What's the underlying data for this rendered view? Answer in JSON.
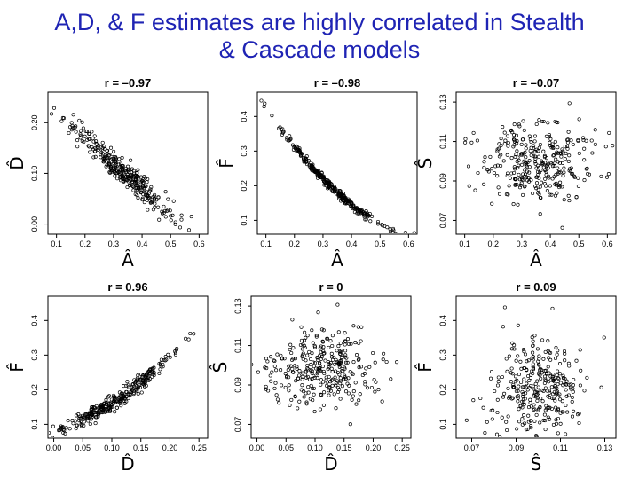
{
  "slide": {
    "title_line1": "A,D, & F estimates are highly correlated in Stealth",
    "title_line2": "& Cascade models"
  },
  "colors": {
    "title": "#1f24b4",
    "points": "#000000",
    "frame": "#000000"
  },
  "chart_data": [
    {
      "type": "scatter",
      "title": "r = –0.97",
      "xlabel": "Â",
      "ylabel": "D̂",
      "xticks": [
        "0.1",
        "0.2",
        "0.3",
        "0.4",
        "0.5",
        "0.6"
      ],
      "yticks": [
        "0.00",
        "0.10",
        "0.20"
      ],
      "xlim": [
        0.07,
        0.63
      ],
      "ylim": [
        -0.02,
        0.26
      ],
      "series": [
        {
          "relation": "linear",
          "slope": -0.5,
          "intercept": 0.27,
          "noise": 0.013,
          "x_mean": 0.33,
          "x_sd": 0.09,
          "n": 320
        }
      ]
    },
    {
      "type": "scatter",
      "title": "r = –0.98",
      "xlabel": "Â",
      "ylabel": "F̂",
      "xticks": [
        "0.1",
        "0.2",
        "0.3",
        "0.4",
        "0.5",
        "0.6"
      ],
      "yticks": [
        "0.1",
        "0.2",
        "0.3",
        "0.4"
      ],
      "xlim": [
        0.07,
        0.63
      ],
      "ylim": [
        0.06,
        0.47
      ],
      "series": [
        {
          "relation": "curve_af",
          "noise": 0.006,
          "x_mean": 0.33,
          "x_sd": 0.09,
          "n": 320
        }
      ]
    },
    {
      "type": "scatter",
      "title": "r = –0.07",
      "xlabel": "Â",
      "ylabel": "Ŝ",
      "xticks": [
        "0.1",
        "0.2",
        "0.3",
        "0.4",
        "0.5",
        "0.6"
      ],
      "yticks": [
        "0.07",
        "0.09",
        "0.11",
        "0.13"
      ],
      "xlim": [
        0.07,
        0.63
      ],
      "ylim": [
        0.063,
        0.135
      ],
      "series": [
        {
          "relation": "none",
          "y_mean": 0.1,
          "y_sd": 0.01,
          "x_mean": 0.35,
          "x_sd": 0.1,
          "n": 320
        }
      ]
    },
    {
      "type": "scatter",
      "title": "r = 0.96",
      "xlabel": "D̂",
      "ylabel": "F̂",
      "xticks": [
        "0.00",
        "0.05",
        "0.10",
        "0.15",
        "0.20",
        "0.25"
      ],
      "yticks": [
        "0.1",
        "0.2",
        "0.3",
        "0.4"
      ],
      "xlim": [
        -0.01,
        0.265
      ],
      "ylim": [
        0.06,
        0.47
      ],
      "series": [
        {
          "relation": "curve_df",
          "noise": 0.012,
          "x_mean": 0.11,
          "x_sd": 0.05,
          "n": 320
        }
      ]
    },
    {
      "type": "scatter",
      "title": "r = 0",
      "xlabel": "D̂",
      "ylabel": "Ŝ",
      "xticks": [
        "0.00",
        "0.05",
        "0.10",
        "0.15",
        "0.20",
        "0.25"
      ],
      "yticks": [
        "0.07",
        "0.09",
        "0.11",
        "0.13"
      ],
      "xlim": [
        -0.01,
        0.265
      ],
      "ylim": [
        0.063,
        0.135
      ],
      "series": [
        {
          "relation": "none",
          "y_mean": 0.098,
          "y_sd": 0.01,
          "x_mean": 0.11,
          "x_sd": 0.05,
          "n": 320
        }
      ]
    },
    {
      "type": "scatter",
      "title": "r = 0.09",
      "xlabel": "Ŝ",
      "ylabel": "F̂",
      "xticks": [
        "0.07",
        "0.09",
        "0.11",
        "0.13"
      ],
      "yticks": [
        "0.1",
        "0.2",
        "0.3",
        "0.4"
      ],
      "xlim": [
        0.063,
        0.135
      ],
      "ylim": [
        0.06,
        0.47
      ],
      "series": [
        {
          "relation": "none",
          "y_mean": 0.2,
          "y_sd": 0.07,
          "x_mean": 0.1,
          "x_sd": 0.01,
          "n": 320
        }
      ]
    }
  ]
}
